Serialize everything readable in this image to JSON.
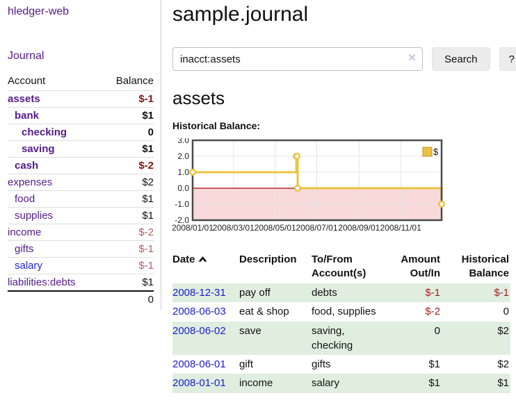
{
  "app": {
    "title": "hledger-web",
    "nav_journal": "Journal"
  },
  "colors": {
    "link_visited": "#551a8b",
    "link_unvisited": "#2222d6",
    "negative_strong": "#8b1111",
    "negative_muted": "#b25e5e",
    "negative": "#a02222",
    "stripe_green": "#e0eee0",
    "chart_line": "#edc240",
    "chart_negative_region": "#f9dada",
    "chart_zero_line": "#a40000",
    "button_bg": "#ececec"
  },
  "sidebar": {
    "accounts_header": {
      "account": "Account",
      "balance": "Balance"
    },
    "accounts": [
      {
        "name": "assets",
        "indent": 0,
        "bold": true,
        "balance": "$-1",
        "negative": true
      },
      {
        "name": "bank",
        "indent": 1,
        "bold": true,
        "balance": "$1",
        "negative": false
      },
      {
        "name": "checking",
        "indent": 2,
        "bold": true,
        "balance": "0",
        "negative": false
      },
      {
        "name": "saving",
        "indent": 2,
        "bold": true,
        "balance": "$1",
        "negative": false
      },
      {
        "name": "cash",
        "indent": 1,
        "bold": true,
        "balance": "$-2",
        "negative": true
      },
      {
        "name": "expenses",
        "indent": 0,
        "bold": false,
        "balance": "$2",
        "negative": false
      },
      {
        "name": "food",
        "indent": 1,
        "bold": false,
        "balance": "$1",
        "negative": false
      },
      {
        "name": "supplies",
        "indent": 1,
        "bold": false,
        "balance": "$1",
        "negative": false
      },
      {
        "name": "income",
        "indent": 0,
        "bold": false,
        "balance": "$-2",
        "negative": true
      },
      {
        "name": "gifts",
        "indent": 1,
        "bold": false,
        "balance": "$-1",
        "negative": true
      },
      {
        "name": "salary",
        "indent": 1,
        "bold": false,
        "balance": "$-1",
        "negative": true,
        "unvisited": true
      },
      {
        "name": "liabilities:debts",
        "indent": 0,
        "bold": false,
        "balance": "$1",
        "negative": false
      }
    ],
    "total": "0"
  },
  "header": {
    "title": "sample.journal"
  },
  "search": {
    "value": "inacct:assets",
    "clear_icon": "✕",
    "button": "Search",
    "help_button": "?"
  },
  "account_page": {
    "heading": "assets",
    "chart_label": "Historical Balance:"
  },
  "chart_data": {
    "type": "line",
    "title": "Historical Balance",
    "series": [
      {
        "name": "$",
        "color": "#edc240",
        "step": true,
        "points": [
          [
            "2008-01-01",
            1
          ],
          [
            "2008-06-01",
            2
          ],
          [
            "2008-06-02",
            2
          ],
          [
            "2008-06-03",
            0
          ],
          [
            "2008-12-31",
            -1
          ]
        ]
      }
    ],
    "x_range": [
      "2008-01-01",
      "2008-12-31"
    ],
    "x_ticks": [
      "2008/01/01",
      "2008/03/01",
      "2008/05/01",
      "2008/07/01",
      "2008/09/01",
      "2008/11/01"
    ],
    "y_ticks": [
      3.0,
      2.0,
      1.0,
      0.0,
      -1.0,
      -2.0
    ],
    "ylim": [
      -2,
      3
    ],
    "grid": true,
    "legend_position": "top-right",
    "legend_label": "$",
    "negative_region_color": "#f9dada",
    "zero_line_color": "#a40000"
  },
  "register": {
    "columns": [
      {
        "label": "Date",
        "sort": "asc"
      },
      {
        "label": "Description"
      },
      {
        "label": "To/From Account(s)"
      },
      {
        "label": "Amount Out/In"
      },
      {
        "label": "Historical Balance"
      }
    ],
    "rows": [
      {
        "date": "2008-12-31",
        "description": "pay off",
        "accounts": "debts",
        "amount": "$-1",
        "amount_negative": true,
        "balance": "$-1",
        "balance_negative": true
      },
      {
        "date": "2008-06-03",
        "description": "eat & shop",
        "accounts": "food, supplies",
        "amount": "$-2",
        "amount_negative": true,
        "balance": "0",
        "balance_negative": false
      },
      {
        "date": "2008-06-02",
        "description": "save",
        "accounts": "saving, checking",
        "amount": "0",
        "amount_negative": false,
        "balance": "$2",
        "balance_negative": false
      },
      {
        "date": "2008-06-01",
        "description": "gift",
        "accounts": "gifts",
        "amount": "$1",
        "amount_negative": false,
        "balance": "$2",
        "balance_negative": false
      },
      {
        "date": "2008-01-01",
        "description": "income",
        "accounts": "salary",
        "amount": "$1",
        "amount_negative": false,
        "balance": "$1",
        "balance_negative": false
      }
    ]
  }
}
